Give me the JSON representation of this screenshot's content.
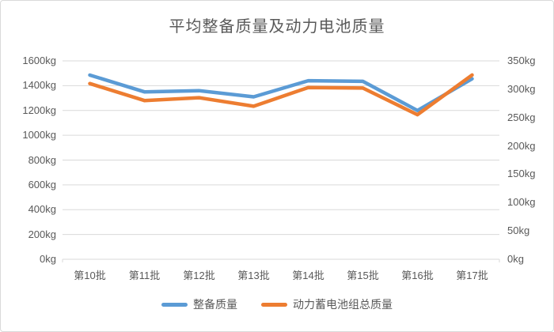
{
  "chart_data": {
    "type": "line",
    "title": "平均整备质量及动力电池质量",
    "categories": [
      "第10批",
      "第11批",
      "第12批",
      "第13批",
      "第14批",
      "第15批",
      "第16批",
      "第17批"
    ],
    "series": [
      {
        "name": "整备质量",
        "axis": "left",
        "color": "#5B9BD5",
        "values": [
          1485,
          1350,
          1360,
          1310,
          1440,
          1435,
          1200,
          1455
        ]
      },
      {
        "name": "动力蓄电池组总质量",
        "axis": "right",
        "color": "#ED7D31",
        "values": [
          310,
          280,
          285,
          270,
          303,
          302,
          255,
          325
        ]
      }
    ],
    "left_axis": {
      "min": 0,
      "max": 1600,
      "step": 200,
      "unit": "kg",
      "tick_labels": [
        "0kg",
        "200kg",
        "400kg",
        "600kg",
        "800kg",
        "1000kg",
        "1200kg",
        "1400kg",
        "1600kg"
      ]
    },
    "right_axis": {
      "min": 0,
      "max": 350,
      "step": 50,
      "unit": "kg",
      "tick_labels": [
        "0kg",
        "50kg",
        "100kg",
        "150kg",
        "200kg",
        "250kg",
        "300kg",
        "350kg"
      ]
    },
    "grid": true,
    "legend_position": "bottom"
  },
  "colors": {
    "series_blue": "#5B9BD5",
    "series_orange": "#ED7D31",
    "text": "#595959",
    "gridline": "#D9D9D9",
    "border": "#D9D9D9",
    "background": "#FFFFFF"
  }
}
